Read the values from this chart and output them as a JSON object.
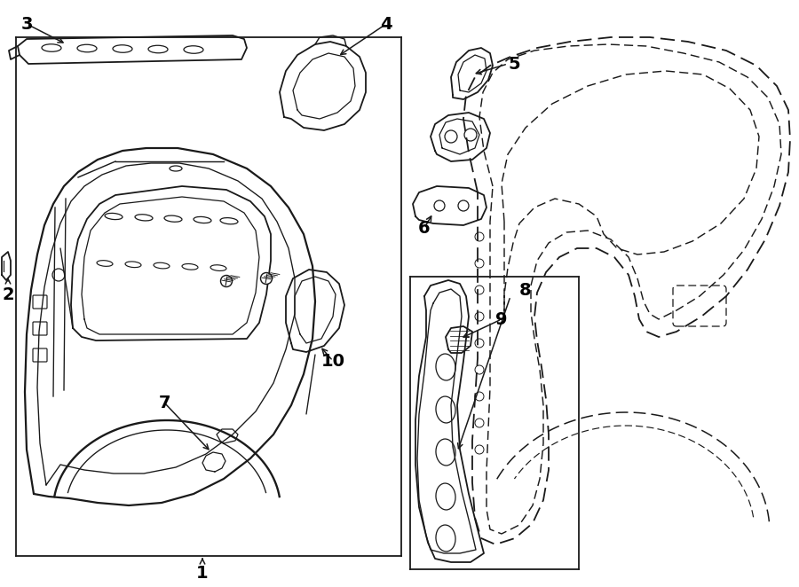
{
  "background": "#ffffff",
  "line_color": "#1a1a1a",
  "lw": 1.3,
  "fig_width": 9.0,
  "fig_height": 6.62,
  "dpi": 100
}
